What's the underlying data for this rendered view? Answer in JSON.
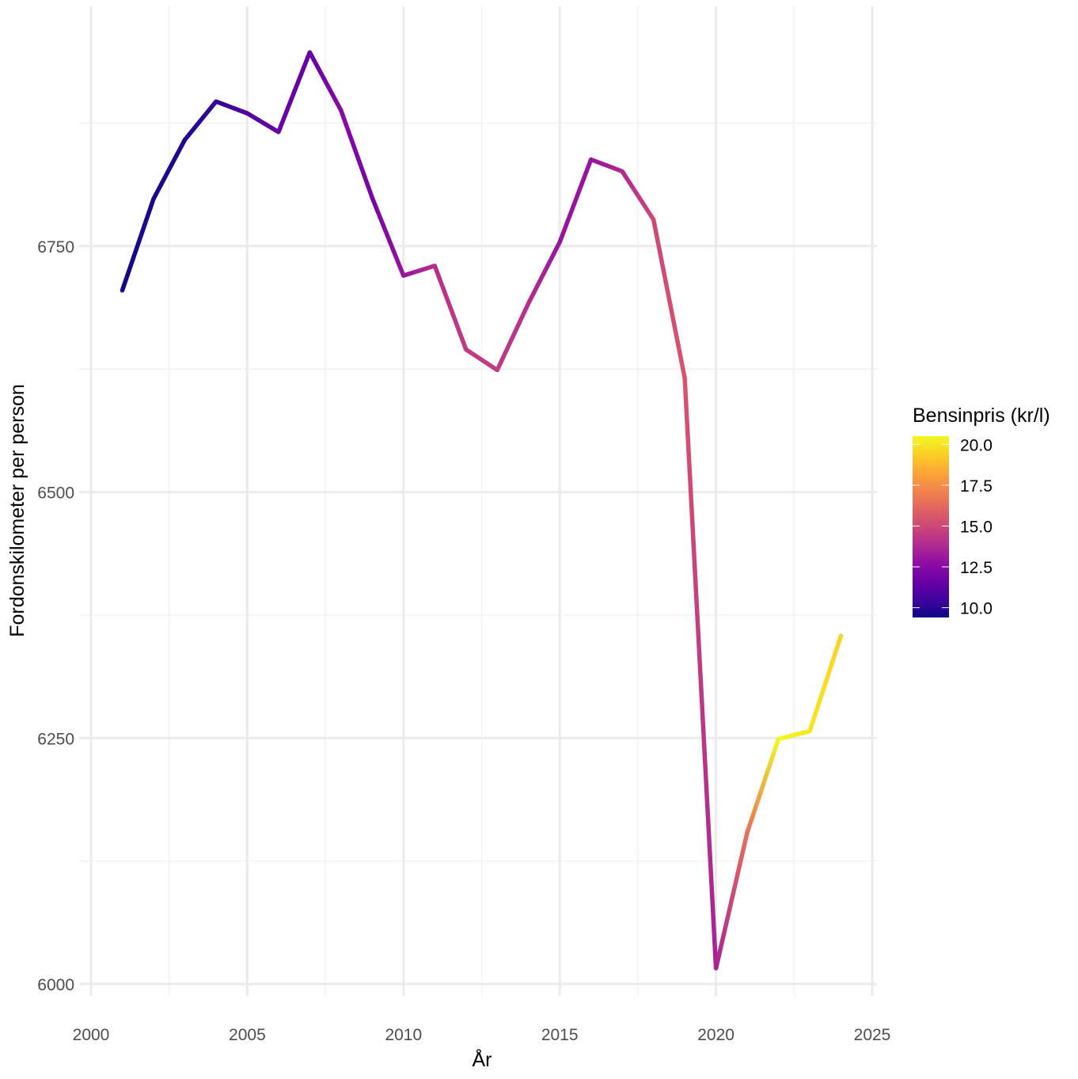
{
  "chart_data": {
    "type": "line",
    "title": "",
    "xlabel": "År",
    "ylabel": "Fordonskilometer per person",
    "xlim": [
      2000,
      2025
    ],
    "ylim": [
      5960,
      6980
    ],
    "x_ticks": [
      2000,
      2005,
      2010,
      2015,
      2020,
      2025
    ],
    "y_ticks": [
      6000,
      6250,
      6500,
      6750
    ],
    "x_tick_labels": [
      "2000",
      "2005",
      "2010",
      "2015",
      "2020",
      "2025"
    ],
    "y_tick_labels": [
      "6000",
      "6250",
      "6500",
      "6750"
    ],
    "grid": true,
    "x": [
      2001,
      2002,
      2003,
      2004,
      2005,
      2006,
      2007,
      2008,
      2009,
      2010,
      2011,
      2012,
      2013,
      2014,
      2015,
      2016,
      2017,
      2018,
      2019,
      2020,
      2021,
      2022,
      2023,
      2024
    ],
    "values": [
      6705,
      6798,
      6858,
      6897,
      6885,
      6866,
      6947,
      6888,
      6799,
      6720,
      6730,
      6645,
      6624,
      6692,
      6754,
      6838,
      6826,
      6777,
      6616,
      6016,
      6154,
      6249,
      6257,
      6354
    ],
    "color_values": [
      9.5,
      9.7,
      9.9,
      10.2,
      11.0,
      11.5,
      11.5,
      12.5,
      12.0,
      13.0,
      14.0,
      14.5,
      14.5,
      14.0,
      13.0,
      13.0,
      13.8,
      15.0,
      15.5,
      13.5,
      16.5,
      20.5,
      20.0,
      19.5
    ],
    "legend": {
      "title": "Bensinpris (kr/l)",
      "placement": "right",
      "range": [
        9.4,
        20.5
      ],
      "ticks": [
        10.0,
        12.5,
        15.0,
        17.5,
        20.0
      ],
      "tick_labels": [
        "10.0",
        "12.5",
        "15.0",
        "17.5",
        "20.0"
      ],
      "colormap": [
        "#0d0887",
        "#41049d",
        "#6a00a8",
        "#8f0da4",
        "#b12a90",
        "#cc4778",
        "#e16462",
        "#f2844b",
        "#fca636",
        "#fcce25",
        "#f0f921"
      ]
    }
  }
}
